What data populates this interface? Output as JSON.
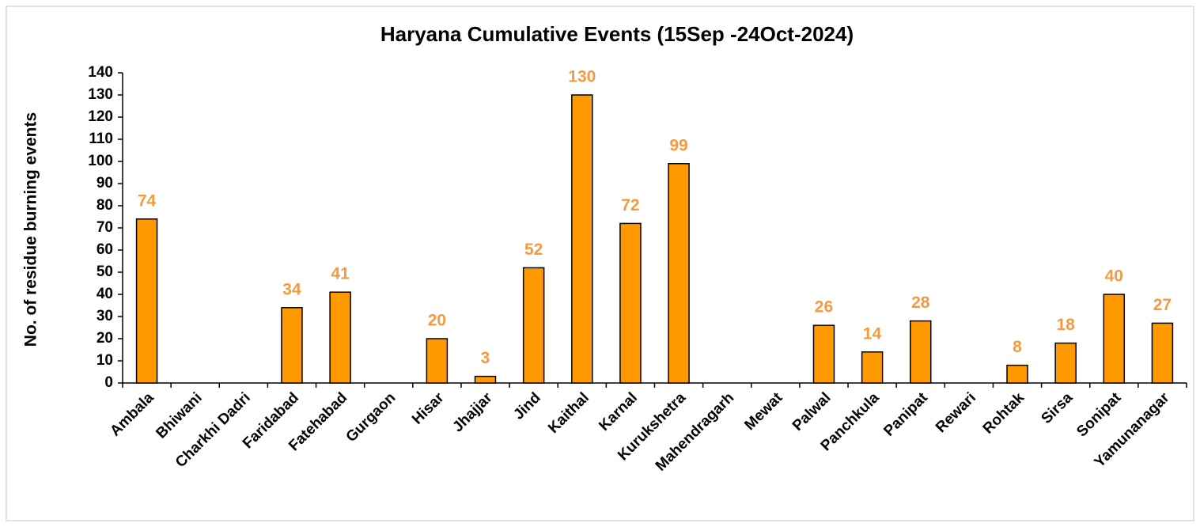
{
  "chart_data": {
    "type": "bar",
    "title": "Haryana Cumulative Events (15Sep -24Oct-2024)",
    "y_label": "No. of residue burning events",
    "categories": [
      "Ambala",
      "Bhiwani",
      "Charkhi Dadri",
      "Faridabad",
      "Fatehabad",
      "Gurgaon",
      "Hisar",
      "Jhajjar",
      "Jind",
      "Kaithal",
      "Karnal",
      "Kurukshetra",
      "Mahendragarh",
      "Mewat",
      "Palwal",
      "Panchkula",
      "Panipat",
      "Rewari",
      "Rohtak",
      "Sirsa",
      "Sonipat",
      "Yamunanagar"
    ],
    "values": [
      74,
      0,
      0,
      34,
      41,
      0,
      20,
      3,
      52,
      130,
      72,
      99,
      0,
      0,
      26,
      14,
      28,
      0,
      8,
      18,
      40,
      27
    ],
    "value_labels": [
      "74",
      null,
      null,
      "34",
      "41",
      null,
      "20",
      "3",
      "52",
      "130",
      "72",
      "99",
      null,
      null,
      "26",
      "14",
      "28",
      null,
      "8",
      "18",
      "40",
      "27"
    ],
    "color": "#ff9900",
    "label_color": "#f59a3e",
    "ylim": [
      0,
      140
    ],
    "yticks": [
      0,
      10,
      20,
      30,
      40,
      50,
      60,
      70,
      80,
      90,
      100,
      110,
      120,
      130,
      140
    ],
    "grid": false
  }
}
